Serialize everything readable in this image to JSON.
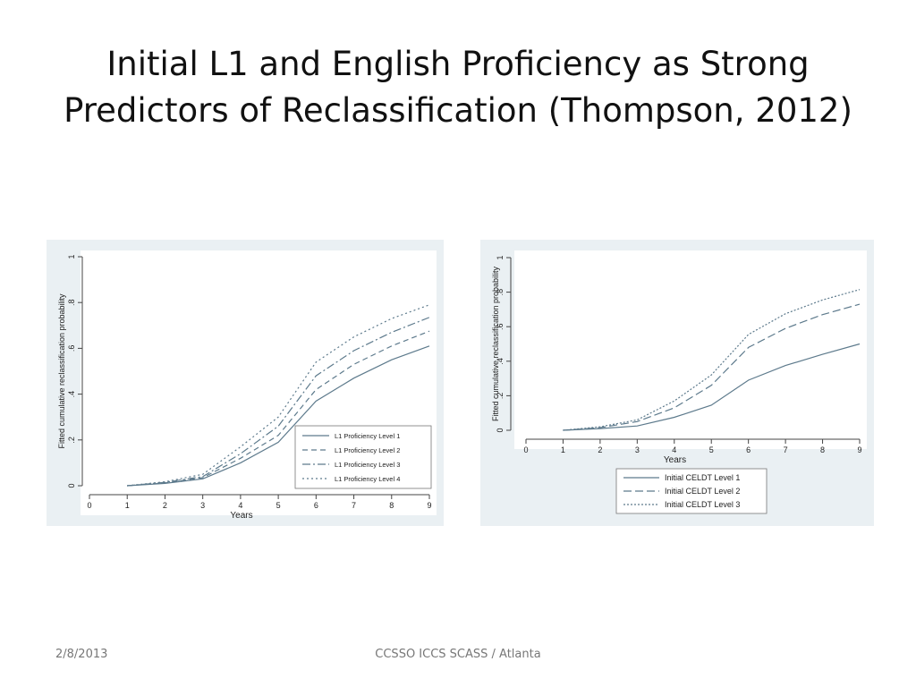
{
  "slide": {
    "title_lines": [
      "Initial L1 and English Proficiency as Strong",
      "Predictors of Reclassification (Thompson, 2012)"
    ],
    "footer_date": "2/8/2013",
    "footer_center": "CCSSO ICCS SCASS / Atlanta"
  },
  "chart_data": [
    {
      "type": "line",
      "title": "",
      "xlabel": "Years",
      "ylabel": "Fitted cumulative reclassification probability",
      "x": [
        1,
        2,
        3,
        4,
        5,
        6,
        7,
        8,
        9
      ],
      "xlim": [
        0,
        9
      ],
      "ylim": [
        0,
        1
      ],
      "xticks": [
        "0",
        "1",
        "2",
        "3",
        "4",
        "5",
        "6",
        "7",
        "8",
        "9"
      ],
      "yticks": [
        0,
        0.2,
        0.4,
        0.6,
        0.8,
        1
      ],
      "ytick_labels": [
        "0",
        ".2",
        ".4",
        ".6",
        ".8",
        "1"
      ],
      "legend_position": "bottom-right inside",
      "series": [
        {
          "name": "L1 Proficiency Level 1",
          "dash": "",
          "values": [
            0.0,
            0.01,
            0.03,
            0.1,
            0.19,
            0.37,
            0.47,
            0.55,
            0.61
          ]
        },
        {
          "name": "L1 Proficiency Level 2",
          "dash": "6 4",
          "values": [
            0.0,
            0.012,
            0.035,
            0.12,
            0.22,
            0.42,
            0.53,
            0.61,
            0.675
          ]
        },
        {
          "name": "L1 Proficiency Level 3",
          "dash": "9 3 2 3",
          "values": [
            0.0,
            0.015,
            0.04,
            0.14,
            0.26,
            0.48,
            0.59,
            0.67,
            0.735
          ]
        },
        {
          "name": "L1 Proficiency Level 4",
          "dash": "2 3",
          "values": [
            0.0,
            0.017,
            0.05,
            0.17,
            0.3,
            0.54,
            0.65,
            0.73,
            0.79
          ]
        }
      ]
    },
    {
      "type": "line",
      "title": "",
      "xlabel": "Years",
      "ylabel": "Fitted cumulative reclassification probability",
      "x": [
        1,
        2,
        3,
        4,
        5,
        6,
        7,
        8,
        9
      ],
      "xlim": [
        0,
        9
      ],
      "ylim": [
        0,
        1
      ],
      "xticks": [
        "0",
        "1",
        "2",
        "3",
        "4",
        "5",
        "6",
        "7",
        "8",
        "9"
      ],
      "yticks": [
        0,
        0.2,
        0.4,
        0.6,
        0.8,
        1
      ],
      "ytick_labels": [
        "0",
        ".2",
        ".4",
        ".6",
        ".8",
        "1"
      ],
      "legend_position": "bottom outside",
      "series": [
        {
          "name": "Initial CELDT Level 1",
          "dash": "",
          "values": [
            0.0,
            0.01,
            0.025,
            0.075,
            0.145,
            0.29,
            0.375,
            0.44,
            0.5
          ]
        },
        {
          "name": "Initial CELDT Level 2",
          "dash": "9 4",
          "values": [
            0.0,
            0.015,
            0.05,
            0.13,
            0.26,
            0.48,
            0.59,
            0.67,
            0.73
          ]
        },
        {
          "name": "Initial CELDT Level 3",
          "dash": "2 2",
          "values": [
            0.0,
            0.02,
            0.06,
            0.17,
            0.32,
            0.555,
            0.675,
            0.755,
            0.815
          ]
        }
      ]
    }
  ]
}
